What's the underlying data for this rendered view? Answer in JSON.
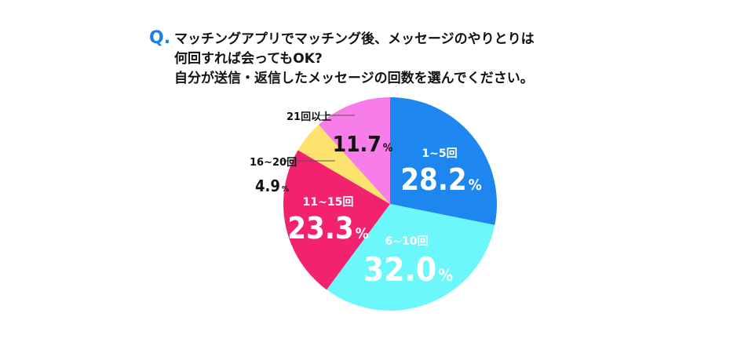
{
  "question": {
    "mark": "Q.",
    "lines": [
      "マッチングアプリでマッチング後、メッセージのやりとりは",
      "何回すれば会ってもOK?",
      "自分が送信・返信したメッセージの回数を選んでください。"
    ]
  },
  "chart_data": {
    "type": "pie",
    "categories": [
      "1~5回",
      "6~10回",
      "11~15回",
      "16~20回",
      "21回以上"
    ],
    "values": [
      28.2,
      32.0,
      23.3,
      4.9,
      11.7
    ],
    "value_labels": [
      "28.2",
      "32.0",
      "23.3",
      "4.9",
      "11.7"
    ],
    "unit": "%",
    "colors": [
      "#1e86ef",
      "#6cf8fb",
      "#f2226e",
      "#fde36d",
      "#f77de9"
    ],
    "start_angle_deg": 0,
    "direction": "clockwise"
  }
}
